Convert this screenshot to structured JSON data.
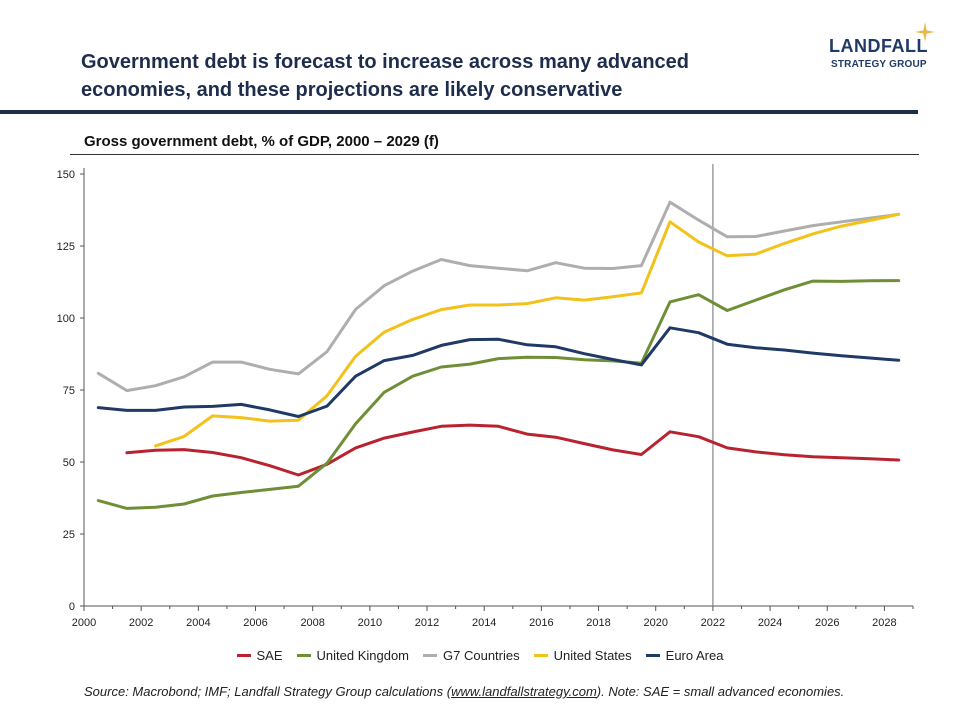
{
  "header": {
    "title": "Government debt is forecast to increase across many advanced economies, and these projections are likely conservative",
    "logo_main": "LANDFALL",
    "logo_sub": "STRATEGY GROUP"
  },
  "colors": {
    "navy": "#1f2d4d",
    "sae": "#b8232f",
    "uk": "#6e8f36",
    "g7": "#aeaeae",
    "us": "#f2c21b",
    "euro": "#1f3a66",
    "star": "#e8b84a"
  },
  "source": {
    "prefix": "Source: Macrobond; IMF; Landfall Strategy Group calculations (",
    "link": "www.landfallstrategy.com",
    "suffix": "). Note: SAE = small advanced economies."
  },
  "chart_data": {
    "type": "line",
    "title": "Gross government debt, % of GDP, 2000 – 2029 (f)",
    "xlabel": "",
    "ylabel": "",
    "xlim": [
      2000,
      2029
    ],
    "ylim": [
      0,
      150
    ],
    "xticks": [
      2000,
      2002,
      2004,
      2006,
      2008,
      2010,
      2012,
      2014,
      2016,
      2018,
      2020,
      2022,
      2024,
      2026,
      2028
    ],
    "yticks": [
      0,
      25,
      50,
      75,
      100,
      125,
      150
    ],
    "forecast_marker": 2022,
    "grid": false,
    "legend_position": "bottom",
    "series": [
      {
        "name": "SAE",
        "color": "#b8232f",
        "x": [
          2001.5,
          2002.5,
          2003.5,
          2004.5,
          2005.5,
          2006.5,
          2007.5,
          2008.5,
          2009.5,
          2010.5,
          2011.5,
          2012.5,
          2013.5,
          2014.5,
          2015.5,
          2016.5,
          2017.5,
          2018.5,
          2019.5,
          2020.5,
          2021.5,
          2022.5,
          2023.5,
          2024.5,
          2025.5,
          2026.5,
          2027.5,
          2028.5
        ],
        "values": [
          53.2,
          54.1,
          54.3,
          53.3,
          51.5,
          48.7,
          45.5,
          49.2,
          54.9,
          58.3,
          60.4,
          62.4,
          62.8,
          62.4,
          59.7,
          58.6,
          56.4,
          54.2,
          52.6,
          60.5,
          58.8,
          54.9,
          53.5,
          52.5,
          51.8,
          51.5,
          51.1,
          50.7
        ]
      },
      {
        "name": "United Kingdom",
        "color": "#6e8f36",
        "x": [
          2000.5,
          2001.5,
          2002.5,
          2003.5,
          2004.5,
          2005.5,
          2006.5,
          2007.5,
          2008.5,
          2009.5,
          2010.5,
          2011.5,
          2012.5,
          2013.5,
          2014.5,
          2015.5,
          2016.5,
          2017.5,
          2018.5,
          2019.5,
          2020.5,
          2021.5,
          2022.5,
          2023.5,
          2024.5,
          2025.5,
          2026.5,
          2027.5,
          2028.5
        ],
        "values": [
          36.6,
          33.9,
          34.3,
          35.4,
          38.2,
          39.4,
          40.5,
          41.6,
          49.6,
          63.3,
          74.2,
          79.8,
          83.0,
          84.0,
          85.9,
          86.4,
          86.3,
          85.5,
          85.1,
          84.3,
          105.6,
          108.1,
          102.6,
          106.2,
          109.8,
          112.8,
          112.7,
          112.9,
          113.0
        ]
      },
      {
        "name": "G7 Countries",
        "color": "#aeaeae",
        "x": [
          2000.5,
          2001.5,
          2002.5,
          2003.5,
          2004.5,
          2005.5,
          2006.5,
          2007.5,
          2008.5,
          2009.5,
          2010.5,
          2011.5,
          2012.5,
          2013.5,
          2014.5,
          2015.5,
          2016.5,
          2017.5,
          2018.5,
          2019.5,
          2020.5,
          2021.5,
          2022.5,
          2023.5,
          2024.5,
          2025.5,
          2026.5,
          2027.5,
          2028.5
        ],
        "values": [
          80.8,
          74.8,
          76.5,
          79.6,
          84.7,
          84.7,
          82.2,
          80.6,
          88.3,
          103.0,
          111.2,
          116.3,
          120.3,
          118.2,
          117.3,
          116.4,
          119.2,
          117.3,
          117.2,
          118.2,
          140.2,
          134.0,
          128.2,
          128.3,
          130.2,
          132.1,
          133.4,
          134.7,
          136.0
        ]
      },
      {
        "name": "United States",
        "color": "#f2c21b",
        "x": [
          2002.5,
          2003.5,
          2004.5,
          2005.5,
          2006.5,
          2007.5,
          2008.5,
          2009.5,
          2010.5,
          2011.5,
          2012.5,
          2013.5,
          2014.5,
          2015.5,
          2016.5,
          2017.5,
          2018.5,
          2019.5,
          2020.5,
          2021.5,
          2022.5,
          2023.5,
          2024.5,
          2025.5,
          2026.5,
          2027.5,
          2028.5
        ],
        "values": [
          55.6,
          58.9,
          66.0,
          65.4,
          64.2,
          64.5,
          73.0,
          86.7,
          95.1,
          99.5,
          102.9,
          104.5,
          104.5,
          105.0,
          107.0,
          106.2,
          107.4,
          108.7,
          133.4,
          126.4,
          121.6,
          122.2,
          125.9,
          129.2,
          131.9,
          133.9,
          136.0
        ]
      },
      {
        "name": "Euro Area",
        "color": "#1f3a66",
        "x": [
          2000.5,
          2001.5,
          2002.5,
          2003.5,
          2004.5,
          2005.5,
          2006.5,
          2007.5,
          2008.5,
          2009.5,
          2010.5,
          2011.5,
          2012.5,
          2013.5,
          2014.5,
          2015.5,
          2016.5,
          2017.5,
          2018.5,
          2019.5,
          2020.5,
          2021.5,
          2022.5,
          2023.5,
          2024.5,
          2025.5,
          2026.5,
          2027.5,
          2028.5
        ],
        "values": [
          68.9,
          67.9,
          67.9,
          69.1,
          69.3,
          70.0,
          68.1,
          65.8,
          69.4,
          79.8,
          85.2,
          87.0,
          90.5,
          92.5,
          92.6,
          90.7,
          90.0,
          87.6,
          85.6,
          83.7,
          96.6,
          94.9,
          90.9,
          89.7,
          88.9,
          87.8,
          86.9,
          86.1,
          85.3
        ]
      }
    ]
  }
}
